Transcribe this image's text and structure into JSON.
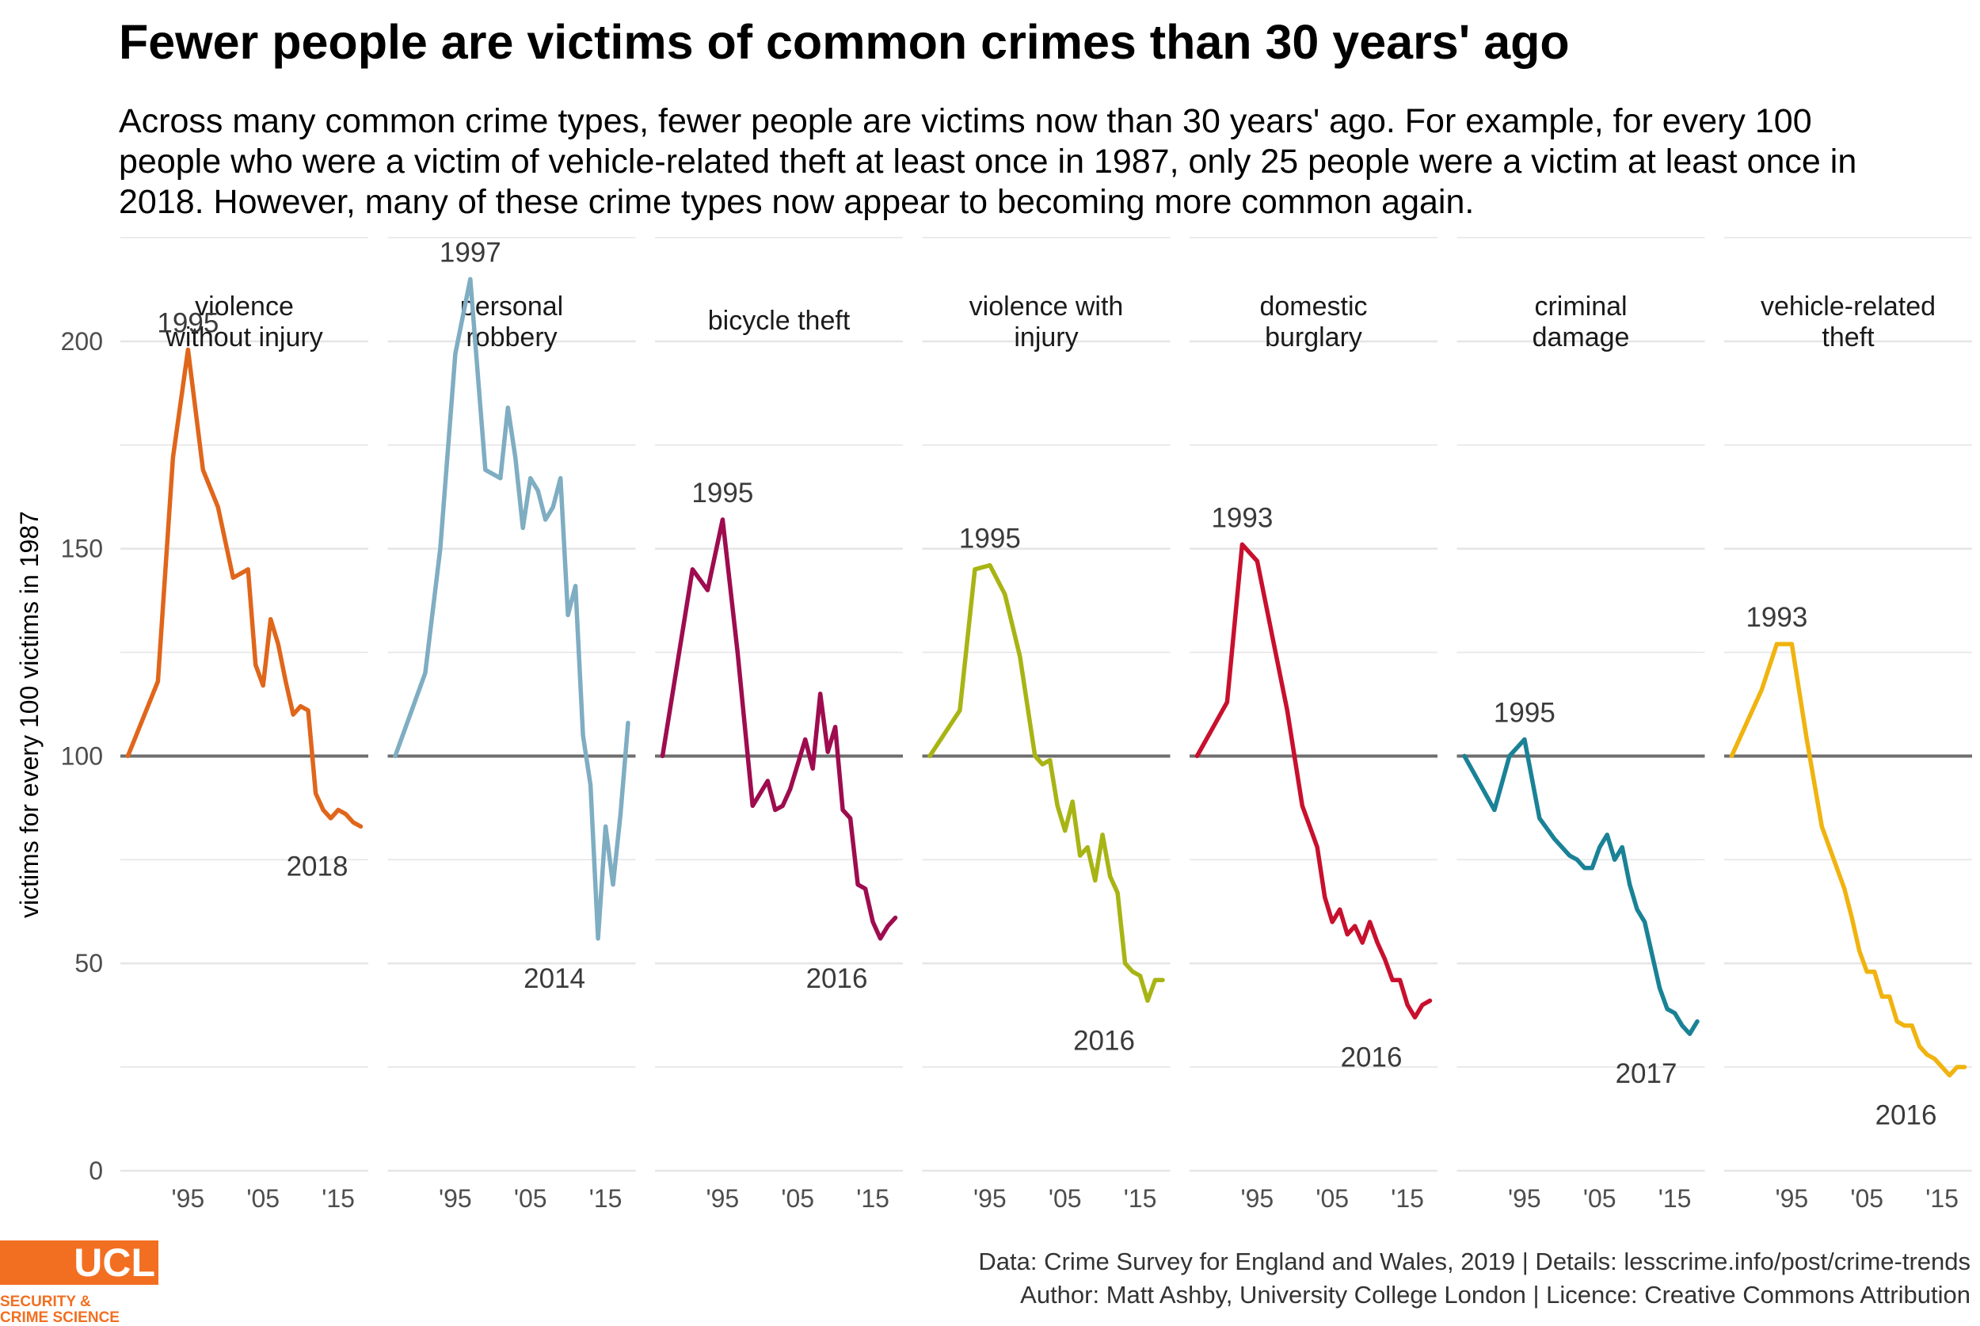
{
  "title": "Fewer people are victims of common crimes than 30 years' ago",
  "subtitle": "Across many common crime types, fewer people are victims now than 30 years' ago. For example, for every 100 people who were a victim of vehicle-related theft at least once in 1987, only 25 people were a victim at least once in 2018. However, many of these crime types now appear to becoming more common again.",
  "caption": {
    "line1": "Data: Crime Survey for England and Wales, 2019 |  Details: lesscrime.info/post/crime-trends",
    "line2": "Author: Matt Ashby, University College London |  Licence: Creative Commons Attribution"
  },
  "logo": {
    "wordmark": "UCL",
    "line1": "SECURITY &",
    "line2": "CRIME SCIENCE",
    "color": "#f26f21"
  },
  "chart_data": {
    "type": "line",
    "ylabel": "victims for every 100 victims in 1987",
    "xlabel": "",
    "ylim": [
      0,
      225
    ],
    "xlim": [
      1986,
      2019
    ],
    "yticks": [
      0,
      50,
      100,
      150,
      200
    ],
    "xticks": [
      {
        "value": 1995,
        "label": "'95"
      },
      {
        "value": 2005,
        "label": "'05"
      },
      {
        "value": 2015,
        "label": "'15"
      }
    ],
    "reference_line": 100,
    "grid": true,
    "legend": "none",
    "panels": [
      {
        "name": "violence without injury",
        "label_lines": [
          "violence",
          "without injury"
        ],
        "color": "#e0661b",
        "peak_label": "1995",
        "end_label": "2018",
        "x": [
          1987,
          1991,
          1993,
          1995,
          1997,
          1999,
          2001,
          2002,
          2003,
          2004,
          2005,
          2006,
          2007,
          2008,
          2009,
          2010,
          2011,
          2012,
          2013,
          2014,
          2015,
          2016,
          2017,
          2018
        ],
        "y": [
          100,
          118,
          172,
          198,
          169,
          160,
          143,
          144,
          145,
          122,
          117,
          133,
          127,
          118,
          110,
          112,
          111,
          91,
          87,
          85,
          87,
          86,
          84,
          83
        ]
      },
      {
        "name": "personal robbery",
        "label_lines": [
          "personal",
          "robbery"
        ],
        "color": "#7fadc2",
        "peak_label": "1997",
        "end_label": "2014",
        "x": [
          1987,
          1991,
          1993,
          1995,
          1997,
          1999,
          2001,
          2002,
          2003,
          2004,
          2005,
          2006,
          2007,
          2008,
          2009,
          2010,
          2011,
          2012,
          2013,
          2014,
          2015,
          2016,
          2017,
          2018
        ],
        "y": [
          100,
          120,
          150,
          197,
          215,
          169,
          167,
          184,
          172,
          155,
          167,
          164,
          157,
          160,
          167,
          134,
          141,
          105,
          93,
          56,
          83,
          69,
          86,
          108
        ]
      },
      {
        "name": "bicycle theft",
        "label_lines": [
          "bicycle theft"
        ],
        "color": "#9e0c4f",
        "peak_label": "1995",
        "end_label": "2016",
        "x": [
          1987,
          1991,
          1993,
          1995,
          1997,
          1999,
          2001,
          2002,
          2003,
          2004,
          2005,
          2006,
          2007,
          2008,
          2009,
          2010,
          2011,
          2012,
          2013,
          2014,
          2015,
          2016,
          2017,
          2018
        ],
        "y": [
          100,
          145,
          140,
          157,
          125,
          88,
          94,
          87,
          88,
          92,
          98,
          104,
          97,
          115,
          101,
          107,
          87,
          85,
          69,
          68,
          60,
          56,
          59,
          61
        ]
      },
      {
        "name": "violence with injury",
        "label_lines": [
          "violence with",
          "injury"
        ],
        "color": "#a8b414",
        "peak_label": "1995",
        "end_label": "2016",
        "x": [
          1987,
          1991,
          1993,
          1995,
          1997,
          1999,
          2001,
          2002,
          2003,
          2004,
          2005,
          2006,
          2007,
          2008,
          2009,
          2010,
          2011,
          2012,
          2013,
          2014,
          2015,
          2016,
          2017,
          2018
        ],
        "y": [
          100,
          111,
          145,
          146,
          139,
          124,
          100,
          98,
          99,
          88,
          82,
          89,
          76,
          78,
          70,
          81,
          71,
          67,
          50,
          48,
          47,
          41,
          46,
          46
        ]
      },
      {
        "name": "domestic burglary",
        "label_lines": [
          "domestic",
          "burglary"
        ],
        "color": "#c8102e",
        "peak_label": "1993",
        "end_label": "2016",
        "x": [
          1987,
          1991,
          1993,
          1995,
          1997,
          1999,
          2001,
          2002,
          2003,
          2004,
          2005,
          2006,
          2007,
          2008,
          2009,
          2010,
          2011,
          2012,
          2013,
          2014,
          2015,
          2016,
          2017,
          2018
        ],
        "y": [
          100,
          113,
          151,
          147,
          129,
          111,
          88,
          83,
          78,
          66,
          60,
          63,
          57,
          59,
          55,
          60,
          55,
          51,
          46,
          46,
          40,
          37,
          40,
          41
        ]
      },
      {
        "name": "criminal damage",
        "label_lines": [
          "criminal",
          "damage"
        ],
        "color": "#1a8296",
        "peak_label": "1995",
        "end_label": "2017",
        "x": [
          1987,
          1991,
          1993,
          1995,
          1997,
          1999,
          2001,
          2002,
          2003,
          2004,
          2005,
          2006,
          2007,
          2008,
          2009,
          2010,
          2011,
          2012,
          2013,
          2014,
          2015,
          2016,
          2017,
          2018
        ],
        "y": [
          100,
          87,
          100,
          104,
          85,
          80,
          76,
          75,
          73,
          73,
          78,
          81,
          75,
          78,
          69,
          63,
          60,
          52,
          44,
          39,
          38,
          35,
          33,
          36
        ]
      },
      {
        "name": "vehicle-related theft",
        "label_lines": [
          "vehicle-related",
          "theft"
        ],
        "color": "#f0b30f",
        "peak_label": "1993",
        "end_label": "2016",
        "x": [
          1987,
          1991,
          1993,
          1995,
          1997,
          1999,
          2001,
          2002,
          2003,
          2004,
          2005,
          2006,
          2007,
          2008,
          2009,
          2010,
          2011,
          2012,
          2013,
          2014,
          2015,
          2016,
          2017,
          2018
        ],
        "y": [
          100,
          116,
          127,
          127,
          104,
          83,
          73,
          68,
          61,
          53,
          48,
          48,
          42,
          42,
          36,
          35,
          35,
          30,
          28,
          27,
          25,
          23,
          25,
          25
        ]
      }
    ]
  }
}
